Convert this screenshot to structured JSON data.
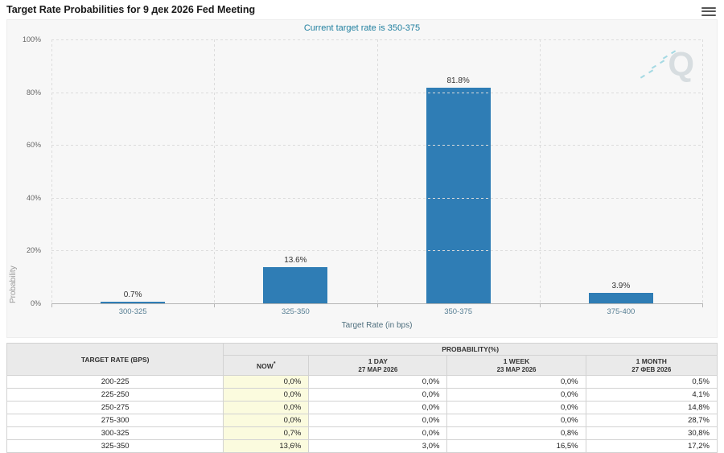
{
  "header": {
    "title": "Target Rate Probabilities for 9 дек 2026 Fed Meeting"
  },
  "chart_data": {
    "type": "bar",
    "subtitle": "Current target rate is 350-375",
    "categories": [
      "300-325",
      "325-350",
      "350-375",
      "375-400"
    ],
    "values": [
      0.7,
      13.6,
      81.8,
      3.9
    ],
    "value_labels": [
      "0.7%",
      "13.6%",
      "81.8%",
      "3.9%"
    ],
    "xlabel": "Target Rate (in bps)",
    "ylabel": "Probability",
    "ylim": [
      0,
      100
    ],
    "yticks": [
      "100%",
      "80%",
      "60%",
      "40%",
      "20%",
      "0%"
    ],
    "bar_color": "#2f7db5",
    "subtitle_color": "#1f7f9f",
    "grid": true,
    "legend": "none",
    "watermark": "Q"
  },
  "table": {
    "col1_header": "TARGET RATE (BPS)",
    "group_header": "PROBABILITY(%)",
    "columns": [
      {
        "key": "now",
        "label": "NOW",
        "sup": "*"
      },
      {
        "key": "1-day",
        "label": "1 DAY",
        "date": "27 МАР 2026"
      },
      {
        "key": "1-week",
        "label": "1 WEEK",
        "date": "23 МАР 2026"
      },
      {
        "key": "1-month",
        "label": "1 MONTH",
        "date": "27 ФЕВ 2026"
      }
    ],
    "rows": [
      {
        "rate": "200-225",
        "values": [
          "0,0%",
          "0,0%",
          "0,0%",
          "0,5%"
        ]
      },
      {
        "rate": "225-250",
        "values": [
          "0,0%",
          "0,0%",
          "0,0%",
          "4,1%"
        ]
      },
      {
        "rate": "250-275",
        "values": [
          "0,0%",
          "0,0%",
          "0,0%",
          "14,8%"
        ]
      },
      {
        "rate": "275-300",
        "values": [
          "0,0%",
          "0,0%",
          "0,0%",
          "28,7%"
        ]
      },
      {
        "rate": "300-325",
        "values": [
          "0,7%",
          "0,0%",
          "0,8%",
          "30,8%"
        ]
      },
      {
        "rate": "325-350",
        "values": [
          "13,6%",
          "3,0%",
          "16,5%",
          "17,2%"
        ]
      }
    ]
  }
}
